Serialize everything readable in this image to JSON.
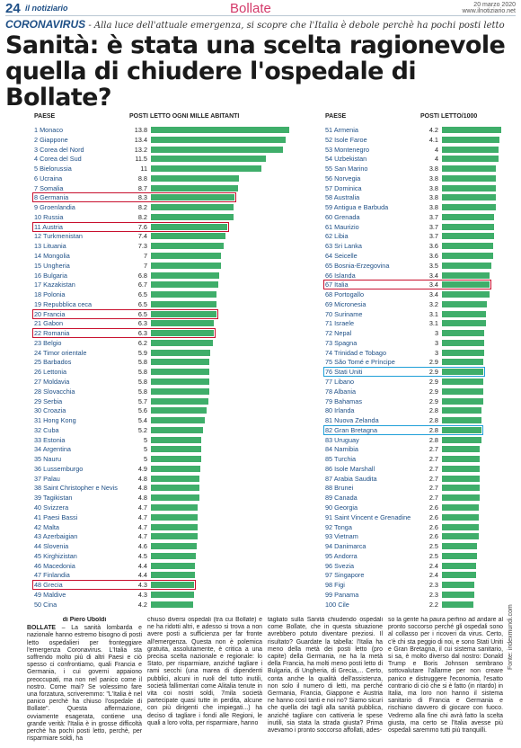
{
  "header": {
    "page_number": "24",
    "section": "il notiziario",
    "city": "Bollate",
    "date": "20 marzo 2020",
    "website": "www.ilnotiziario.net"
  },
  "kicker": {
    "label": "CORONAVIRUS",
    "text": "- Alla luce dell'attuale emergenza, si scopre che l'Italia è debole perchè ha pochi posti letto"
  },
  "headline": "Sanità: è stata una scelta ragionevole quella di chiudere l'ospedale di Bollate?",
  "chart_data": {
    "type": "bar",
    "title": "",
    "column_headers": {
      "country": "PAESE",
      "value_left": "POSTI LETTO OGNI MILLE ABITANTI",
      "value_right": "POSTI LETTO/1000"
    },
    "xlim": [
      0,
      13.8
    ],
    "highlight_colors": {
      "italy_comparison": "#c8102e",
      "other_comparison": "#1f9fd8"
    },
    "bar_color": "#3fae6a",
    "rows": [
      {
        "rank": "1",
        "name": "Monaco",
        "value": 13.8
      },
      {
        "rank": "2",
        "name": "Giappone",
        "value": 13.4
      },
      {
        "rank": "3",
        "name": "Corea del Nord",
        "value": 13.2
      },
      {
        "rank": "4",
        "name": "Corea del Sud",
        "value": 11.5
      },
      {
        "rank": "5",
        "name": "Bielorussia",
        "value": 11
      },
      {
        "rank": "6",
        "name": "Ucraina",
        "value": 8.8
      },
      {
        "rank": "7",
        "name": "Somalia",
        "value": 8.7
      },
      {
        "rank": "8",
        "name": "Germania",
        "value": 8.3,
        "highlight": "red"
      },
      {
        "rank": "9",
        "name": "Groenlandia",
        "value": 8.2
      },
      {
        "rank": "10",
        "name": "Russia",
        "value": 8.2
      },
      {
        "rank": "11",
        "name": "Austria",
        "value": 7.6,
        "highlight": "red"
      },
      {
        "rank": "12",
        "name": "Turkmenistan",
        "value": 7.4
      },
      {
        "rank": "13",
        "name": "Lituania",
        "value": 7.3
      },
      {
        "rank": "14",
        "name": "Mongolia",
        "value": 7
      },
      {
        "rank": "15",
        "name": "Ungheria",
        "value": 7
      },
      {
        "rank": "16",
        "name": "Bulgaria",
        "value": 6.8
      },
      {
        "rank": "17",
        "name": "Kazakistan",
        "value": 6.7
      },
      {
        "rank": "18",
        "name": "Polonia",
        "value": 6.5
      },
      {
        "rank": "19",
        "name": "Repubblica ceca",
        "value": 6.5
      },
      {
        "rank": "20",
        "name": "Francia",
        "value": 6.5,
        "highlight": "red"
      },
      {
        "rank": "21",
        "name": "Gabon",
        "value": 6.3
      },
      {
        "rank": "22",
        "name": "Romania",
        "value": 6.3,
        "highlight": "red"
      },
      {
        "rank": "23",
        "name": "Belgio",
        "value": 6.2
      },
      {
        "rank": "24",
        "name": "Timor orientale",
        "value": 5.9
      },
      {
        "rank": "25",
        "name": "Barbados",
        "value": 5.8
      },
      {
        "rank": "26",
        "name": "Lettonia",
        "value": 5.8
      },
      {
        "rank": "27",
        "name": "Moldavia",
        "value": 5.8
      },
      {
        "rank": "28",
        "name": "Slovacchia",
        "value": 5.8
      },
      {
        "rank": "29",
        "name": "Serbia",
        "value": 5.7
      },
      {
        "rank": "30",
        "name": "Croazia",
        "value": 5.6
      },
      {
        "rank": "31",
        "name": "Hong Kong",
        "value": 5.4
      },
      {
        "rank": "32",
        "name": "Cuba",
        "value": 5.2
      },
      {
        "rank": "33",
        "name": "Estonia",
        "value": 5
      },
      {
        "rank": "34",
        "name": "Argentina",
        "value": 5
      },
      {
        "rank": "35",
        "name": "Nauru",
        "value": 5
      },
      {
        "rank": "36",
        "name": "Lussemburgo",
        "value": 4.9
      },
      {
        "rank": "37",
        "name": "Palau",
        "value": 4.8
      },
      {
        "rank": "38",
        "name": "Saint Christopher e Nevis",
        "value": 4.8
      },
      {
        "rank": "39",
        "name": "Tagikistan",
        "value": 4.8
      },
      {
        "rank": "40",
        "name": "Svizzera",
        "value": 4.7
      },
      {
        "rank": "41",
        "name": "Paesi Bassi",
        "value": 4.7
      },
      {
        "rank": "42",
        "name": "Malta",
        "value": 4.7
      },
      {
        "rank": "43",
        "name": "Azerbaigian",
        "value": 4.7
      },
      {
        "rank": "44",
        "name": "Slovenia",
        "value": 4.6
      },
      {
        "rank": "45",
        "name": "Kirghizistan",
        "value": 4.5
      },
      {
        "rank": "46",
        "name": "Macedonia",
        "value": 4.4
      },
      {
        "rank": "47",
        "name": "Finlandia",
        "value": 4.4
      },
      {
        "rank": "48",
        "name": "Grecia",
        "value": 4.3,
        "highlight": "red"
      },
      {
        "rank": "49",
        "name": "Maldive",
        "value": 4.3
      },
      {
        "rank": "50",
        "name": "Cina",
        "value": 4.2
      },
      {
        "rank": "51",
        "name": "Armenia",
        "value": 4.2
      },
      {
        "rank": "52",
        "name": "Isole Faroe",
        "value": 4.1
      },
      {
        "rank": "53",
        "name": "Montenegro",
        "value": 4
      },
      {
        "rank": "54",
        "name": "Uzbekistan",
        "value": 4
      },
      {
        "rank": "55",
        "name": "San Marino",
        "value": 3.8
      },
      {
        "rank": "56",
        "name": "Norvegia",
        "value": 3.8
      },
      {
        "rank": "57",
        "name": "Dominica",
        "value": 3.8
      },
      {
        "rank": "58",
        "name": "Australia",
        "value": 3.8
      },
      {
        "rank": "59",
        "name": "Antigua e Barbuda",
        "value": 3.8
      },
      {
        "rank": "60",
        "name": "Grenada",
        "value": 3.7
      },
      {
        "rank": "61",
        "name": "Maurizio",
        "value": 3.7
      },
      {
        "rank": "62",
        "name": "Libia",
        "value": 3.7
      },
      {
        "rank": "63",
        "name": "Sri Lanka",
        "value": 3.6
      },
      {
        "rank": "64",
        "name": "Seicelle",
        "value": 3.6
      },
      {
        "rank": "65",
        "name": "Bosnia-Erzegovina",
        "value": 3.5
      },
      {
        "rank": "66",
        "name": "Islanda",
        "value": 3.4
      },
      {
        "rank": "67",
        "name": "Italia",
        "value": 3.4,
        "highlight": "red"
      },
      {
        "rank": "68",
        "name": "Portogallo",
        "value": 3.4
      },
      {
        "rank": "69",
        "name": "Micronesia",
        "value": 3.2
      },
      {
        "rank": "70",
        "name": "Suriname",
        "value": 3.1
      },
      {
        "rank": "71",
        "name": "Israele",
        "value": 3.1
      },
      {
        "rank": "72",
        "name": "Nepal",
        "value": 3
      },
      {
        "rank": "73",
        "name": "Spagna",
        "value": 3
      },
      {
        "rank": "74",
        "name": "Trinidad e Tobago",
        "value": 3
      },
      {
        "rank": "75",
        "name": "São Tomé e Príncipe",
        "value": 2.9
      },
      {
        "rank": "76",
        "name": "Stati Uniti",
        "value": 2.9,
        "highlight": "blue"
      },
      {
        "rank": "77",
        "name": "Libano",
        "value": 2.9
      },
      {
        "rank": "78",
        "name": "Albania",
        "value": 2.9
      },
      {
        "rank": "79",
        "name": "Bahamas",
        "value": 2.9
      },
      {
        "rank": "80",
        "name": "Irlanda",
        "value": 2.8
      },
      {
        "rank": "81",
        "name": "Nuova Zelanda",
        "value": 2.8
      },
      {
        "rank": "82",
        "name": "Gran Bretagna",
        "value": 2.8,
        "highlight": "blue"
      },
      {
        "rank": "83",
        "name": "Uruguay",
        "value": 2.8
      },
      {
        "rank": "84",
        "name": "Namibia",
        "value": 2.7
      },
      {
        "rank": "85",
        "name": "Turchia",
        "value": 2.7
      },
      {
        "rank": "86",
        "name": "Isole Marshall",
        "value": 2.7
      },
      {
        "rank": "87",
        "name": "Arabia Saudita",
        "value": 2.7
      },
      {
        "rank": "88",
        "name": "Brunei",
        "value": 2.7
      },
      {
        "rank": "89",
        "name": "Canada",
        "value": 2.7
      },
      {
        "rank": "90",
        "name": "Georgia",
        "value": 2.6
      },
      {
        "rank": "91",
        "name": "Saint Vincent e Grenadine",
        "value": 2.6
      },
      {
        "rank": "92",
        "name": "Tonga",
        "value": 2.6
      },
      {
        "rank": "93",
        "name": "Vietnam",
        "value": 2.6
      },
      {
        "rank": "94",
        "name": "Danimarca",
        "value": 2.5
      },
      {
        "rank": "95",
        "name": "Andorra",
        "value": 2.5
      },
      {
        "rank": "96",
        "name": "Svezia",
        "value": 2.4
      },
      {
        "rank": "97",
        "name": "Singapore",
        "value": 2.4
      },
      {
        "rank": "98",
        "name": "Figi",
        "value": 2.3
      },
      {
        "rank": "99",
        "name": "Panama",
        "value": 2.3
      },
      {
        "rank": "100",
        "name": "Cile",
        "value": 2.2
      }
    ]
  },
  "source": "Fonte: indexmundi.com",
  "article": {
    "byline": "di Piero Uboldi",
    "col1_lead": "BOLLATE",
    "col1": " – La sanità lombarda e nazionale hanno estremo bisogno di posti letto ospedalieri per fronteggiare l'emergenza Coronavirus. L'Italia sta soffrendo molto più di altri Paesi e ciò spesso ci confrontiamo, quali Francia e Germania, i cui governi appaiono preoccupati, ma non nel panico come il nostro. Come mai? Se volessimo fare una forzatura, scriveremmo: \"L'Italia è nel panico perchè ha chiuso l'ospedale di Bollate\". Questa affermazione, ovviamente esagerata, contiene una grande verità: l'Italia è in grosse difficoltà perchè ha pochi posti letto, perchè, per risparmiare soldi, ha",
    "col2": "chiuso diversi ospedali (tra cui Bollate) e ne ha ridotti altri, e adesso si trova a non avere posti a sufficienza per far fronte all'emergenza. Questa non è polemica gratuita, assolutamente, è critica a una precisa scelta nazionale e regionale: lo Stato, per risparmiare, anziché tagliare i rami secchi (una marea di dipendenti pubblici, alcuni in ruoli del tutto inutili, società fallimentari come Alitalia tenute in vita coi nostri soldi, 7mila società partecipate quasi tutte in perdita, alcune con più dirigenti che impiegati...) ha deciso di tagliare i fondi alle Regioni, le quali a loro volta, per risparmiare, hanno",
    "col3": "tagliato sulla Sanità chiudendo ospedali come Bollate, che in questa situazione avrebbero potuto diventare preziosi. Il risultato? Guardate la tabella: l'Italia ha meno della metà dei posti letto (pro capite) della Germania, ne ha la metà della Francia, ha molti meno posti letto di Bulgaria, di Ungheria, di Grecia,... Certo, conta anche la qualità dell'assistenza, non solo il numero di letti, ma perché Germania, Francia, Giappone e Austria ne hanno così tanti e noi no? Siamo sicuri che quella dei tagli alla sanità pubblica, anziché tagliare con cattiveria le spese inutili, sia stata la strada giusta? Prima avevamo i pronto soccorso affollati, ades-",
    "col4": "so la gente ha paura perfino ad andare al pronto soccorso perché gli ospedali sono al collasso per i ricoveri da virus. Certo, c'è chi sta peggio di noi, e sono Stati Uniti e Gran Bretagna, il cui sistema sanitario, si sa, è molto diverso dal nostro: Donald Trump e Boris Johnson sembrano sottovalutare l'allarme per non creare panico e distruggere l'economia, l'esatto contrario di ciò che si è fatto (in ritardo) in Italia, ma loro non hanno il sistema sanitario di Francia e Germania e rischiano davvero di giocare con fuoco. Vedremo alla fine chi avrà fatto la scelta giusta, ma certo se l'Italia avesse più ospedali saremmo tutti più tranquilli."
  }
}
